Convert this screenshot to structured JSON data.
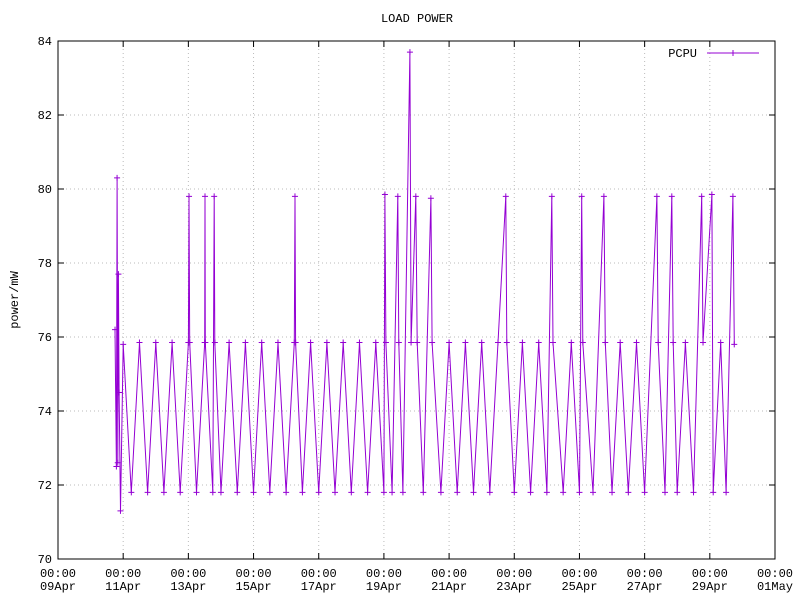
{
  "chart_data": {
    "type": "line",
    "title": "LOAD POWER",
    "y_label": "power/mW",
    "series": [
      {
        "name": "PCPU",
        "color": "#9400d3",
        "x": [
          "10Apr 18:00",
          "10Apr 19:00",
          "10Apr 19:30",
          "10Apr 20:00",
          "10Apr 20:30",
          "10Apr 21:00",
          "10Apr 22:00",
          "11Apr 00:00",
          "11Apr 06:00",
          "11Apr 12:00",
          "11Apr 18:00",
          "12Apr 00:00",
          "12Apr 06:00",
          "12Apr 12:00",
          "12Apr 18:00",
          "13Apr 00:00",
          "13Apr 00:30",
          "13Apr 01:00",
          "13Apr 06:00",
          "13Apr 12:00",
          "13Apr 12:15",
          "13Apr 12:30",
          "13Apr 18:00",
          "13Apr 19:00",
          "13Apr 19:30",
          "14Apr 00:00",
          "14Apr 06:00",
          "14Apr 12:00",
          "14Apr 18:00",
          "15Apr 00:00",
          "15Apr 06:00",
          "15Apr 12:00",
          "15Apr 18:00",
          "16Apr 00:00",
          "16Apr 06:00",
          "16Apr 06:30",
          "16Apr 07:00",
          "16Apr 12:00",
          "16Apr 18:00",
          "17Apr 00:00",
          "17Apr 06:00",
          "17Apr 12:00",
          "17Apr 18:00",
          "18Apr 00:00",
          "18Apr 06:00",
          "18Apr 12:00",
          "18Apr 18:00",
          "19Apr 00:00",
          "19Apr 00:45",
          "19Apr 01:30",
          "19Apr 06:00",
          "19Apr 10:15",
          "19Apr 11:00",
          "19Apr 14:00",
          "19Apr 19:10",
          "19Apr 20:00",
          "19Apr 23:30",
          "20Apr 00:30",
          "20Apr 05:00",
          "20Apr 10:35",
          "20Apr 11:30",
          "20Apr 18:00",
          "21Apr 00:00",
          "21Apr 06:00",
          "21Apr 12:00",
          "21Apr 18:00",
          "22Apr 00:00",
          "22Apr 06:00",
          "22Apr 12:00",
          "22Apr 17:45",
          "22Apr 18:30",
          "23Apr 00:00",
          "23Apr 06:00",
          "23Apr 12:00",
          "23Apr 18:00",
          "24Apr 00:00",
          "24Apr 03:40",
          "24Apr 04:30",
          "24Apr 12:00",
          "24Apr 18:00",
          "25Apr 00:00",
          "25Apr 01:40",
          "25Apr 02:30",
          "25Apr 10:00",
          "25Apr 18:00",
          "25Apr 19:00",
          "26Apr 00:00",
          "26Apr 06:00",
          "26Apr 12:00",
          "26Apr 18:00",
          "27Apr 00:00",
          "27Apr 09:00",
          "27Apr 10:00",
          "27Apr 15:00",
          "27Apr 20:00",
          "27Apr 21:00",
          "28Apr 00:00",
          "28Apr 06:00",
          "28Apr 12:00",
          "28Apr 18:00",
          "28Apr 19:00",
          "29Apr 01:30",
          "29Apr 02:30",
          "29Apr 08:00",
          "29Apr 12:00",
          "29Apr 17:00",
          "29Apr 18:00"
        ],
        "values": [
          76.2,
          72.5,
          80.3,
          72.6,
          77.7,
          74.5,
          71.3,
          75.8,
          71.8,
          75.85,
          71.8,
          75.85,
          71.8,
          75.85,
          71.8,
          75.85,
          79.8,
          75.85,
          71.8,
          75.85,
          79.8,
          75.85,
          71.8,
          79.8,
          75.85,
          71.8,
          75.85,
          71.8,
          75.85,
          71.8,
          75.85,
          71.8,
          75.85,
          71.8,
          75.85,
          79.8,
          75.85,
          71.8,
          75.85,
          71.8,
          75.85,
          71.8,
          75.85,
          71.8,
          75.85,
          71.8,
          75.85,
          71.8,
          79.85,
          75.85,
          71.8,
          79.8,
          75.85,
          71.8,
          83.7,
          75.85,
          79.8,
          75.85,
          71.8,
          79.75,
          75.85,
          71.8,
          75.85,
          71.8,
          75.85,
          71.8,
          75.85,
          71.8,
          75.85,
          79.8,
          75.85,
          71.8,
          75.85,
          71.8,
          75.85,
          71.8,
          79.8,
          75.85,
          71.8,
          75.85,
          71.8,
          79.8,
          75.85,
          71.8,
          79.8,
          75.85,
          71.8,
          75.85,
          71.8,
          75.85,
          71.8,
          79.8,
          75.85,
          71.8,
          79.8,
          75.85,
          71.8,
          75.85,
          71.8,
          79.8,
          75.85,
          79.85,
          71.8,
          75.85,
          71.8,
          79.8,
          75.8
        ]
      }
    ],
    "xlim": [
      "09Apr 00:00",
      "01May 00:00"
    ],
    "xticks": [
      {
        "value": "09Apr 00:00",
        "label": [
          "00:00",
          "09Apr"
        ]
      },
      {
        "value": "11Apr 00:00",
        "label": [
          "00:00",
          "11Apr"
        ]
      },
      {
        "value": "13Apr 00:00",
        "label": [
          "00:00",
          "13Apr"
        ]
      },
      {
        "value": "15Apr 00:00",
        "label": [
          "00:00",
          "15Apr"
        ]
      },
      {
        "value": "17Apr 00:00",
        "label": [
          "00:00",
          "17Apr"
        ]
      },
      {
        "value": "19Apr 00:00",
        "label": [
          "00:00",
          "19Apr"
        ]
      },
      {
        "value": "21Apr 00:00",
        "label": [
          "00:00",
          "21Apr"
        ]
      },
      {
        "value": "23Apr 00:00",
        "label": [
          "00:00",
          "23Apr"
        ]
      },
      {
        "value": "25Apr 00:00",
        "label": [
          "00:00",
          "25Apr"
        ]
      },
      {
        "value": "27Apr 00:00",
        "label": [
          "00:00",
          "27Apr"
        ]
      },
      {
        "value": "29Apr 00:00",
        "label": [
          "00:00",
          "29Apr"
        ]
      },
      {
        "value": "01May 00:00",
        "label": [
          "00:00",
          "01May"
        ]
      }
    ],
    "ylim": [
      70,
      84
    ],
    "yticks": [
      70,
      72,
      74,
      76,
      78,
      80,
      82,
      84
    ],
    "grid": true,
    "legend": "top-right"
  }
}
